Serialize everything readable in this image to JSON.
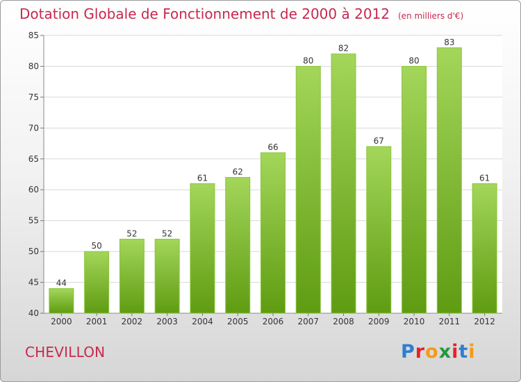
{
  "header": {
    "title": "Dotation Globale de Fonctionnement de 2000 à 2012",
    "subtitle": "(en milliers d'€)"
  },
  "footer": {
    "commune": "CHEVILLON",
    "brand": "Proxiti",
    "brand_colors": [
      "#2f7fd1",
      "#e8202a",
      "#f59a16",
      "#1f9a3c",
      "#e8202a",
      "#2f7fd1",
      "#f59a16"
    ]
  },
  "colors": {
    "bar_top": "#a3d65a",
    "bar_bottom": "#5f9c12",
    "title": "#c8284f"
  },
  "chart_data": {
    "type": "bar",
    "categories": [
      "2000",
      "2001",
      "2002",
      "2003",
      "2004",
      "2005",
      "2006",
      "2007",
      "2008",
      "2009",
      "2010",
      "2011",
      "2012"
    ],
    "values": [
      44,
      50,
      52,
      52,
      61,
      62,
      66,
      80,
      82,
      67,
      80,
      83,
      61
    ],
    "title": "Dotation Globale de Fonctionnement de 2000 à 2012",
    "subtitle": "(en milliers d'€)",
    "xlabel": "",
    "ylabel": "",
    "ylim": [
      40,
      85
    ],
    "yticks": [
      40,
      45,
      50,
      55,
      60,
      65,
      70,
      75,
      80,
      85
    ],
    "grid": true,
    "legend": "none"
  }
}
